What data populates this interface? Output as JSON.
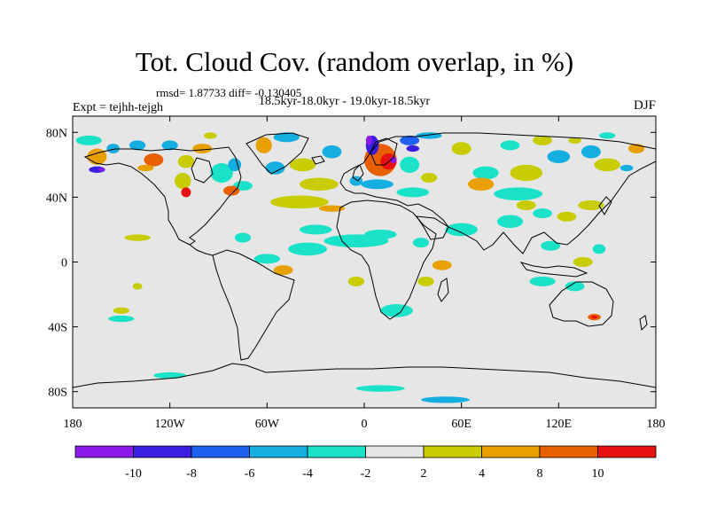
{
  "title": "Tot. Cloud Cov. (random overlap, in %)",
  "stats": "rmsd= 1.87733  diff= -0.130405",
  "period": "18.5kyr-18.0kyr - 19.0kyr-18.5kyr",
  "experiment": "Expt = tejhh-tejgh",
  "season": "DJF",
  "map": {
    "projection": "cylindrical equidistant",
    "lon_range": [
      -180,
      180
    ],
    "lat_range": [
      -90,
      90
    ],
    "background_color": "#e6e6e6",
    "x_ticks": [
      {
        "value": -180,
        "label": "180"
      },
      {
        "value": -120,
        "label": "120W"
      },
      {
        "value": -60,
        "label": "60W"
      },
      {
        "value": 0,
        "label": "0"
      },
      {
        "value": 60,
        "label": "60E"
      },
      {
        "value": 120,
        "label": "120E"
      },
      {
        "value": 180,
        "label": "180"
      }
    ],
    "y_ticks": [
      {
        "value": 80,
        "label": "80N"
      },
      {
        "value": 40,
        "label": "40N"
      },
      {
        "value": 0,
        "label": "0"
      },
      {
        "value": -40,
        "label": "40S"
      },
      {
        "value": -80,
        "label": "80S"
      }
    ]
  },
  "colorbar": {
    "colors": [
      "#8a1ae8",
      "#3a1fe0",
      "#1f60f0",
      "#15aee0",
      "#1ae2c8",
      "#e6e6e6",
      "#c8cc00",
      "#e8a000",
      "#e86000",
      "#e81010"
    ],
    "labels": [
      "-10",
      "-8",
      "-6",
      "-4",
      "-2",
      "2",
      "4",
      "8",
      "10"
    ]
  },
  "chart_data": {
    "type": "heatmap",
    "title": "Tot. Cloud Cov. (random overlap, in %)",
    "xlabel": "",
    "ylabel": "",
    "xlim": [
      -180,
      180
    ],
    "ylim": [
      -90,
      90
    ],
    "levels": [
      -12,
      -10,
      -8,
      -6,
      -4,
      -2,
      2,
      4,
      8,
      10,
      12
    ],
    "anomalies": [
      {
        "lon": -165,
        "lat": 65,
        "lon_r": 6,
        "lat_r": 5,
        "level": 7
      },
      {
        "lon": -155,
        "lat": 70,
        "lon_r": 4,
        "lat_r": 3,
        "level": 3
      },
      {
        "lon": -165,
        "lat": 57,
        "lon_r": 5,
        "lat_r": 2,
        "level": 1
      },
      {
        "lon": -162,
        "lat": 57,
        "lon_r": 2,
        "lat_r": 1,
        "level": 0
      },
      {
        "lon": -140,
        "lat": 72,
        "lon_r": 5,
        "lat_r": 3,
        "level": 3
      },
      {
        "lon": -130,
        "lat": 63,
        "lon_r": 6,
        "lat_r": 4,
        "level": 8
      },
      {
        "lon": -135,
        "lat": 58,
        "lon_r": 5,
        "lat_r": 2,
        "level": 7
      },
      {
        "lon": -120,
        "lat": 72,
        "lon_r": 5,
        "lat_r": 3,
        "level": 3
      },
      {
        "lon": -110,
        "lat": 62,
        "lon_r": 5,
        "lat_r": 4,
        "level": 6
      },
      {
        "lon": -100,
        "lat": 70,
        "lon_r": 6,
        "lat_r": 3,
        "level": 7
      },
      {
        "lon": -112,
        "lat": 50,
        "lon_r": 5,
        "lat_r": 5,
        "level": 6
      },
      {
        "lon": -110,
        "lat": 43,
        "lon_r": 3,
        "lat_r": 3,
        "level": 9
      },
      {
        "lon": -88,
        "lat": 55,
        "lon_r": 7,
        "lat_r": 6,
        "level": 4
      },
      {
        "lon": -80,
        "lat": 60,
        "lon_r": 4,
        "lat_r": 4,
        "level": 3
      },
      {
        "lon": -75,
        "lat": 47,
        "lon_r": 6,
        "lat_r": 3,
        "level": 4
      },
      {
        "lon": -82,
        "lat": 44,
        "lon_r": 5,
        "lat_r": 3,
        "level": 8
      },
      {
        "lon": -62,
        "lat": 72,
        "lon_r": 5,
        "lat_r": 5,
        "level": 7
      },
      {
        "lon": -48,
        "lat": 77,
        "lon_r": 8,
        "lat_r": 3,
        "level": 3
      },
      {
        "lon": -55,
        "lat": 58,
        "lon_r": 6,
        "lat_r": 4,
        "level": 3
      },
      {
        "lon": -38,
        "lat": 60,
        "lon_r": 8,
        "lat_r": 4,
        "level": 6
      },
      {
        "lon": -20,
        "lat": 68,
        "lon_r": 6,
        "lat_r": 4,
        "level": 3
      },
      {
        "lon": -28,
        "lat": 48,
        "lon_r": 12,
        "lat_r": 4,
        "level": 6
      },
      {
        "lon": -40,
        "lat": 37,
        "lon_r": 18,
        "lat_r": 4,
        "level": 6
      },
      {
        "lon": -20,
        "lat": 33,
        "lon_r": 8,
        "lat_r": 2,
        "level": 7
      },
      {
        "lon": -5,
        "lat": 50,
        "lon_r": 4,
        "lat_r": 3,
        "level": 3
      },
      {
        "lon": 10,
        "lat": 63,
        "lon_r": 10,
        "lat_r": 10,
        "level": 8
      },
      {
        "lon": 15,
        "lat": 62,
        "lon_r": 5,
        "lat_r": 5,
        "level": 9
      },
      {
        "lon": 18,
        "lat": 63,
        "lon_r": 2,
        "lat_r": 2,
        "level": 0
      },
      {
        "lon": 5,
        "lat": 72,
        "lon_r": 4,
        "lat_r": 6,
        "level": 1
      },
      {
        "lon": 3,
        "lat": 75,
        "lon_r": 2,
        "lat_r": 3,
        "level": 0
      },
      {
        "lon": 28,
        "lat": 75,
        "lon_r": 6,
        "lat_r": 3,
        "level": 2
      },
      {
        "lon": 30,
        "lat": 70,
        "lon_r": 4,
        "lat_r": 2,
        "level": 1
      },
      {
        "lon": 40,
        "lat": 78,
        "lon_r": 8,
        "lat_r": 2,
        "level": 3
      },
      {
        "lon": 8,
        "lat": 48,
        "lon_r": 10,
        "lat_r": 3,
        "level": 3
      },
      {
        "lon": 30,
        "lat": 43,
        "lon_r": 10,
        "lat_r": 3,
        "level": 4
      },
      {
        "lon": 28,
        "lat": 60,
        "lon_r": 6,
        "lat_r": 5,
        "level": 4
      },
      {
        "lon": 40,
        "lat": 52,
        "lon_r": 5,
        "lat_r": 3,
        "level": 6
      },
      {
        "lon": 60,
        "lat": 70,
        "lon_r": 6,
        "lat_r": 4,
        "level": 6
      },
      {
        "lon": 75,
        "lat": 55,
        "lon_r": 8,
        "lat_r": 4,
        "level": 4
      },
      {
        "lon": 72,
        "lat": 48,
        "lon_r": 8,
        "lat_r": 4,
        "level": 7
      },
      {
        "lon": 100,
        "lat": 55,
        "lon_r": 10,
        "lat_r": 5,
        "level": 6
      },
      {
        "lon": 95,
        "lat": 42,
        "lon_r": 15,
        "lat_r": 4,
        "level": 4
      },
      {
        "lon": 90,
        "lat": 72,
        "lon_r": 6,
        "lat_r": 3,
        "level": 4
      },
      {
        "lon": 110,
        "lat": 75,
        "lon_r": 6,
        "lat_r": 3,
        "level": 6
      },
      {
        "lon": 120,
        "lat": 65,
        "lon_r": 7,
        "lat_r": 4,
        "level": 3
      },
      {
        "lon": 140,
        "lat": 68,
        "lon_r": 6,
        "lat_r": 4,
        "level": 3
      },
      {
        "lon": 150,
        "lat": 60,
        "lon_r": 8,
        "lat_r": 4,
        "level": 6
      },
      {
        "lon": 168,
        "lat": 70,
        "lon_r": 5,
        "lat_r": 3,
        "level": 7
      },
      {
        "lon": 162,
        "lat": 58,
        "lon_r": 4,
        "lat_r": 2,
        "level": 3
      },
      {
        "lon": -5,
        "lat": 13,
        "lon_r": 20,
        "lat_r": 4,
        "level": 4
      },
      {
        "lon": 10,
        "lat": 17,
        "lon_r": 10,
        "lat_r": 3,
        "level": 4
      },
      {
        "lon": -35,
        "lat": 8,
        "lon_r": 12,
        "lat_r": 4,
        "level": 4
      },
      {
        "lon": -30,
        "lat": 20,
        "lon_r": 10,
        "lat_r": 3,
        "level": 4
      },
      {
        "lon": -60,
        "lat": 2,
        "lon_r": 8,
        "lat_r": 3,
        "level": 4
      },
      {
        "lon": -50,
        "lat": -5,
        "lon_r": 6,
        "lat_r": 3,
        "level": 7
      },
      {
        "lon": -75,
        "lat": 15,
        "lon_r": 5,
        "lat_r": 3,
        "level": 4
      },
      {
        "lon": -140,
        "lat": 15,
        "lon_r": 8,
        "lat_r": 2,
        "level": 6
      },
      {
        "lon": -140,
        "lat": -15,
        "lon_r": 3,
        "lat_r": 2,
        "level": 6
      },
      {
        "lon": -150,
        "lat": -30,
        "lon_r": 5,
        "lat_r": 2,
        "level": 6
      },
      {
        "lon": -150,
        "lat": -35,
        "lon_r": 8,
        "lat_r": 2,
        "level": 4
      },
      {
        "lon": -5,
        "lat": -12,
        "lon_r": 5,
        "lat_r": 3,
        "level": 6
      },
      {
        "lon": 35,
        "lat": 12,
        "lon_r": 5,
        "lat_r": 3,
        "level": 4
      },
      {
        "lon": 48,
        "lat": -2,
        "lon_r": 6,
        "lat_r": 3,
        "level": 7
      },
      {
        "lon": 38,
        "lat": -12,
        "lon_r": 5,
        "lat_r": 3,
        "level": 6
      },
      {
        "lon": 20,
        "lat": -30,
        "lon_r": 10,
        "lat_r": 4,
        "level": 4
      },
      {
        "lon": 60,
        "lat": 20,
        "lon_r": 10,
        "lat_r": 4,
        "level": 4
      },
      {
        "lon": 90,
        "lat": 25,
        "lon_r": 8,
        "lat_r": 4,
        "level": 4
      },
      {
        "lon": 100,
        "lat": 35,
        "lon_r": 6,
        "lat_r": 3,
        "level": 6
      },
      {
        "lon": 110,
        "lat": 30,
        "lon_r": 6,
        "lat_r": 3,
        "level": 4
      },
      {
        "lon": 125,
        "lat": 28,
        "lon_r": 6,
        "lat_r": 3,
        "level": 6
      },
      {
        "lon": 140,
        "lat": 35,
        "lon_r": 8,
        "lat_r": 3,
        "level": 6
      },
      {
        "lon": 115,
        "lat": 10,
        "lon_r": 6,
        "lat_r": 3,
        "level": 4
      },
      {
        "lon": 135,
        "lat": 0,
        "lon_r": 6,
        "lat_r": 3,
        "level": 6
      },
      {
        "lon": 145,
        "lat": 8,
        "lon_r": 4,
        "lat_r": 3,
        "level": 4
      },
      {
        "lon": 110,
        "lat": -12,
        "lon_r": 8,
        "lat_r": 3,
        "level": 4
      },
      {
        "lon": 130,
        "lat": -15,
        "lon_r": 6,
        "lat_r": 3,
        "level": 4
      },
      {
        "lon": 142,
        "lat": -34,
        "lon_r": 4,
        "lat_r": 2,
        "level": 8
      },
      {
        "lon": 142,
        "lat": -34,
        "lon_r": 2,
        "lat_r": 1,
        "level": 9
      },
      {
        "lon": 10,
        "lat": -78,
        "lon_r": 15,
        "lat_r": 2,
        "level": 4
      },
      {
        "lon": 50,
        "lat": -85,
        "lon_r": 15,
        "lat_r": 2,
        "level": 3
      },
      {
        "lon": -120,
        "lat": -70,
        "lon_r": 10,
        "lat_r": 2,
        "level": 4
      },
      {
        "lon": -170,
        "lat": 75,
        "lon_r": 8,
        "lat_r": 3,
        "level": 4
      },
      {
        "lon": -95,
        "lat": 78,
        "lon_r": 4,
        "lat_r": 2,
        "level": 6
      },
      {
        "lon": 130,
        "lat": 75,
        "lon_r": 4,
        "lat_r": 2,
        "level": 6
      },
      {
        "lon": 150,
        "lat": 78,
        "lon_r": 5,
        "lat_r": 2,
        "level": 4
      }
    ]
  }
}
